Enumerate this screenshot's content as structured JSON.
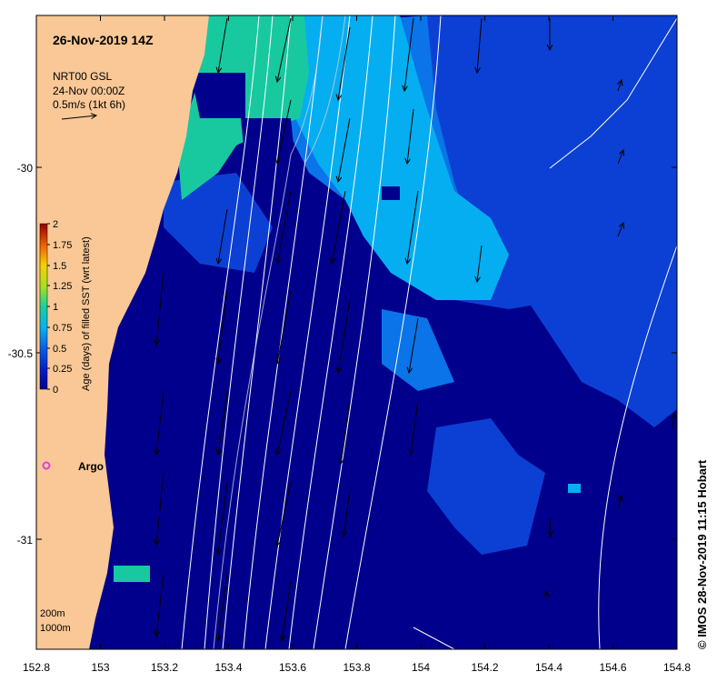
{
  "map": {
    "date_title": "26-Nov-2019 14Z",
    "product": "NRT00 GSL",
    "product_time": "24-Nov 00:00Z",
    "vector_scale": "0.5m/s (1kt 6h)",
    "credit": "© IMOS 28-Nov-2019 11:15 Hobart",
    "argo_label": "Argo",
    "depth_labels": [
      "200m",
      "1000m"
    ],
    "x_ticks": [
      "152.8",
      "153",
      "153.2",
      "153.4",
      "153.6",
      "153.8",
      "154",
      "154.2",
      "154.4",
      "154.6",
      "154.8"
    ],
    "y_ticks": [
      "-30",
      "-30.5",
      "-31"
    ],
    "colorbar": {
      "title": "Age (days) of filled SST (wrt latest)",
      "ticks": [
        "2",
        "1.75",
        "1.5",
        "1.25",
        "1",
        "0.75",
        "0.5",
        "0.25",
        "0"
      ]
    }
  },
  "colors": {
    "land": "#f9c896",
    "deep_blue": "#00008c",
    "blue": "#0c40d4",
    "mid_blue": "#0a74e8",
    "light_blue": "#05aef0",
    "cyan_green": "#18c9a0",
    "green": "#1acb6e",
    "contour": "#ffffff",
    "argo_marker": "#e040e0"
  }
}
